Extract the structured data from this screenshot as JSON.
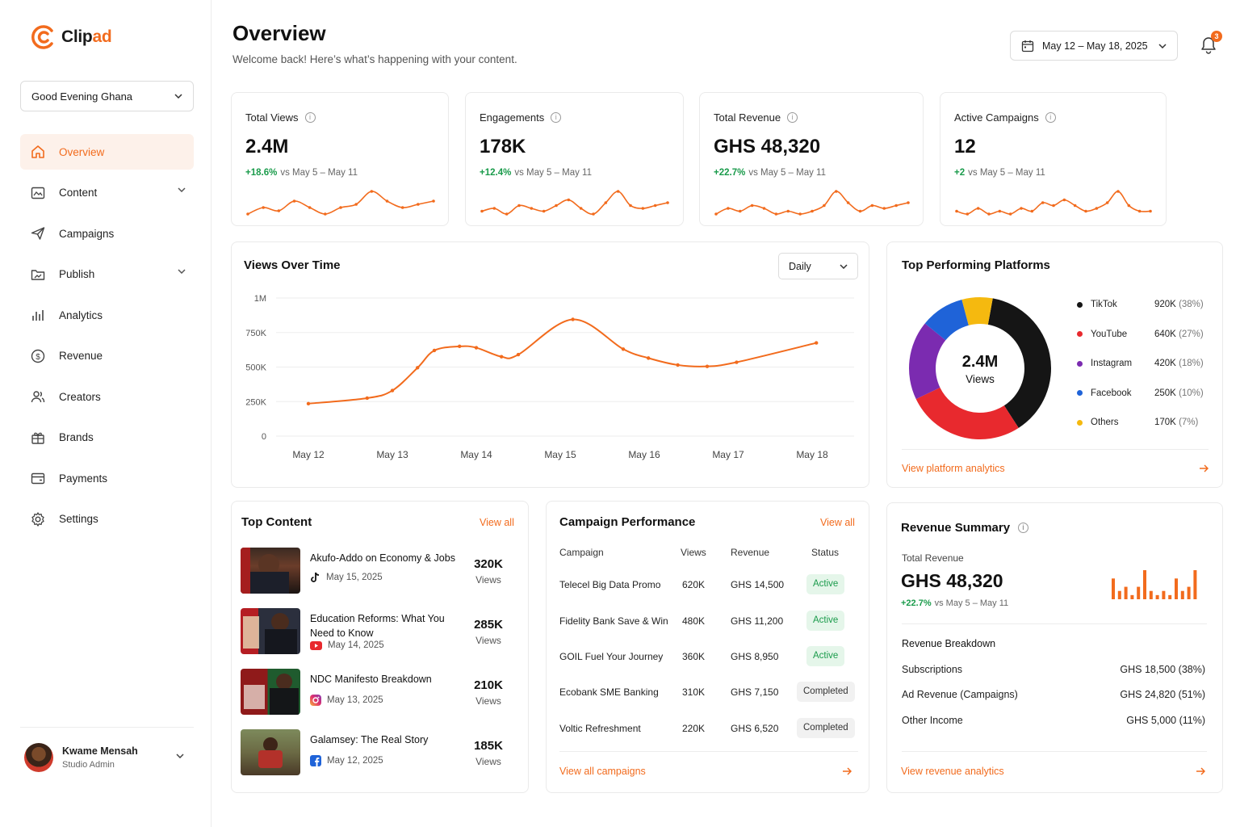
{
  "brand": {
    "name_part1": "Clip",
    "name_part2": "ad",
    "accent": "#f26b1d"
  },
  "workspace": {
    "selected": "Good Evening Ghana"
  },
  "nav": [
    {
      "label": "Overview",
      "icon": "home-icon",
      "active": true,
      "has_chevron": false
    },
    {
      "label": "Content",
      "icon": "content-icon",
      "active": false,
      "has_chevron": true
    },
    {
      "label": "Campaigns",
      "icon": "send-icon",
      "active": false,
      "has_chevron": false
    },
    {
      "label": "Publish",
      "icon": "publish-icon",
      "active": false,
      "has_chevron": true
    },
    {
      "label": "Analytics",
      "icon": "analytics-icon",
      "active": false,
      "has_chevron": false
    },
    {
      "label": "Revenue",
      "icon": "dollar-icon",
      "active": false,
      "has_chevron": false
    },
    {
      "label": "Creators",
      "icon": "users-icon",
      "active": false,
      "has_chevron": false
    },
    {
      "label": "Brands",
      "icon": "gift-icon",
      "active": false,
      "has_chevron": false
    },
    {
      "label": "Payments",
      "icon": "wallet-icon",
      "active": false,
      "has_chevron": false
    },
    {
      "label": "Settings",
      "icon": "gear-icon",
      "active": false,
      "has_chevron": false
    }
  ],
  "user": {
    "name": "Kwame Mensah",
    "role": "Studio Admin"
  },
  "header": {
    "title": "Overview",
    "subtitle": "Welcome back! Here’s what’s happening with your content.",
    "date_range": "May 12 – May 18, 2025",
    "notification_count": "3"
  },
  "kpis": [
    {
      "label": "Total Views",
      "value": "2.4M",
      "change": "+18.6%",
      "compare": "vs May 5 – May 11",
      "spark": [
        3,
        5,
        4,
        7,
        5,
        3,
        5,
        6,
        10,
        7,
        5,
        6,
        7
      ]
    },
    {
      "label": "Engagements",
      "value": "178K",
      "change": "+12.4%",
      "compare": "vs May 5 – May 11",
      "spark": [
        4,
        5,
        3,
        6,
        5,
        4,
        6,
        8,
        5,
        3,
        7,
        11,
        6,
        5,
        6,
        7
      ]
    },
    {
      "label": "Total Revenue",
      "value": "GHS 48,320",
      "change": "+22.7%",
      "compare": "vs May 5 – May 11",
      "spark": [
        3,
        5,
        4,
        6,
        5,
        3,
        4,
        3,
        4,
        6,
        11,
        7,
        4,
        6,
        5,
        6,
        7
      ]
    },
    {
      "label": "Active Campaigns",
      "value": "12",
      "change": "+2",
      "compare": "vs May 5 – May 11",
      "spark": [
        4,
        3,
        5,
        3,
        4,
        3,
        5,
        4,
        7,
        6,
        8,
        6,
        4,
        5,
        7,
        11,
        6,
        4,
        4
      ]
    }
  ],
  "views_chart": {
    "title": "Views Over Time",
    "granularity": "Daily",
    "chart_data": {
      "type": "line",
      "categories": [
        "May 12",
        "May 13",
        "May 14",
        "May 15",
        "May 16",
        "May 17",
        "May 18"
      ],
      "x": [
        0,
        0.7,
        1,
        1.3,
        1.5,
        1.8,
        2,
        2.3,
        2.5,
        3.15,
        3.75,
        4.05,
        4.4,
        4.75,
        5.1,
        6.05
      ],
      "values": [
        235000,
        275000,
        330000,
        495000,
        620000,
        650000,
        640000,
        575000,
        590000,
        845000,
        630000,
        565000,
        515000,
        505000,
        535000,
        675000
      ],
      "yticks": [
        "0",
        "250K",
        "500K",
        "750K",
        "1M"
      ],
      "ylim": [
        0,
        1000000
      ],
      "color": "#f26b1d",
      "grid": true
    }
  },
  "platforms": {
    "title": "Top Performing Platforms",
    "center_value": "2.4M",
    "center_label": "Views",
    "link": "View platform analytics",
    "chart_data": {
      "type": "pie",
      "items": [
        {
          "name": "TikTok",
          "value": "920K",
          "pct": "(38%)",
          "share": 38,
          "color": "#151515"
        },
        {
          "name": "YouTube",
          "value": "640K",
          "pct": "(27%)",
          "share": 27,
          "color": "#e8292e"
        },
        {
          "name": "Instagram",
          "value": "420K",
          "pct": "(18%)",
          "share": 18,
          "color": "#7b2bb0"
        },
        {
          "name": "Facebook",
          "value": "250K",
          "pct": "(10%)",
          "share": 10,
          "color": "#1f63d8"
        },
        {
          "name": "Others",
          "value": "170K",
          "pct": "(7%)",
          "share": 7,
          "color": "#f5b90f"
        }
      ]
    }
  },
  "top_content": {
    "title": "Top Content",
    "view_all": "View all",
    "items": [
      {
        "title": "Akufo-Addo on Economy & Jobs",
        "platform_icon": "tiktok-icon",
        "date": "May 15, 2025",
        "views": "320K",
        "views_label": "Views"
      },
      {
        "title": "Education Reforms: What You Need to Know",
        "platform_icon": "youtube-icon",
        "date": "May 14, 2025",
        "views": "285K",
        "views_label": "Views"
      },
      {
        "title": "NDC Manifesto Breakdown",
        "platform_icon": "instagram-icon",
        "date": "May 13, 2025",
        "views": "210K",
        "views_label": "Views"
      },
      {
        "title": "Galamsey: The Real Story",
        "platform_icon": "facebook-icon",
        "date": "May 12, 2025",
        "views": "185K",
        "views_label": "Views"
      }
    ]
  },
  "campaigns": {
    "title": "Campaign Performance",
    "view_all": "View all",
    "headers": [
      "Campaign",
      "Views",
      "Revenue",
      "Status"
    ],
    "rows": [
      {
        "name": "Telecel Big Data Promo",
        "views": "620K",
        "revenue": "GHS 14,500",
        "status": "Active"
      },
      {
        "name": "Fidelity Bank Save & Win",
        "views": "480K",
        "revenue": "GHS 11,200",
        "status": "Active"
      },
      {
        "name": "GOIL Fuel Your Journey",
        "views": "360K",
        "revenue": "GHS 8,950",
        "status": "Active"
      },
      {
        "name": "Ecobank SME Banking",
        "views": "310K",
        "revenue": "GHS 7,150",
        "status": "Completed"
      },
      {
        "name": "Voltic Refreshment",
        "views": "220K",
        "revenue": "GHS 6,520",
        "status": "Completed"
      }
    ],
    "link": "View all campaigns"
  },
  "revenue": {
    "title": "Revenue Summary",
    "total_label": "Total Revenue",
    "total": "GHS 48,320",
    "change": "+22.7%",
    "compare": "vs May 5 – May 11",
    "bars": [
      5,
      2,
      3,
      1,
      3,
      7,
      2,
      1,
      2,
      1,
      5,
      2,
      3,
      7
    ],
    "breakdown_title": "Revenue Breakdown",
    "breakdown": [
      {
        "label": "Subscriptions",
        "value": "GHS 18,500 (38%)"
      },
      {
        "label": "Ad Revenue (Campaigns)",
        "value": "GHS 24,820 (51%)"
      },
      {
        "label": "Other Income",
        "value": "GHS 5,000 (11%)"
      }
    ],
    "link": "View revenue analytics"
  }
}
